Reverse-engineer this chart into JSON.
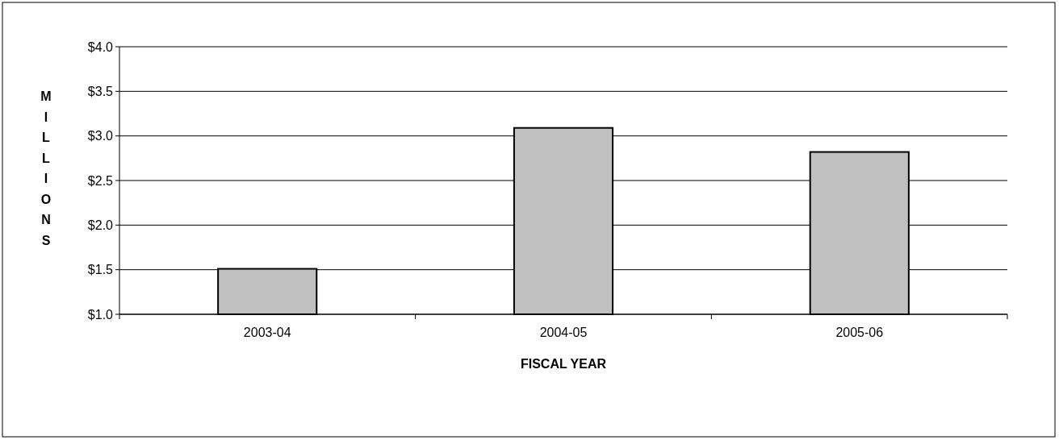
{
  "chart_data": {
    "type": "bar",
    "xlabel": "FISCAL YEAR",
    "ylabel": "MILLIONS",
    "categories": [
      "2003-04",
      "2004-05",
      "2005-06"
    ],
    "values": [
      1.51,
      3.09,
      2.82
    ],
    "color": "#c0c0c0",
    "ylim": [
      1.0,
      4.0
    ],
    "yticks": [
      {
        "value": 1.0,
        "label": "$1.0"
      },
      {
        "value": 1.5,
        "label": "$1.5"
      },
      {
        "value": 2.0,
        "label": "$2.0"
      },
      {
        "value": 2.5,
        "label": "$2.5"
      },
      {
        "value": 3.0,
        "label": "$3.0"
      },
      {
        "value": 3.5,
        "label": "$3.5"
      },
      {
        "value": 4.0,
        "label": "$4.0"
      }
    ],
    "grid": "y"
  }
}
